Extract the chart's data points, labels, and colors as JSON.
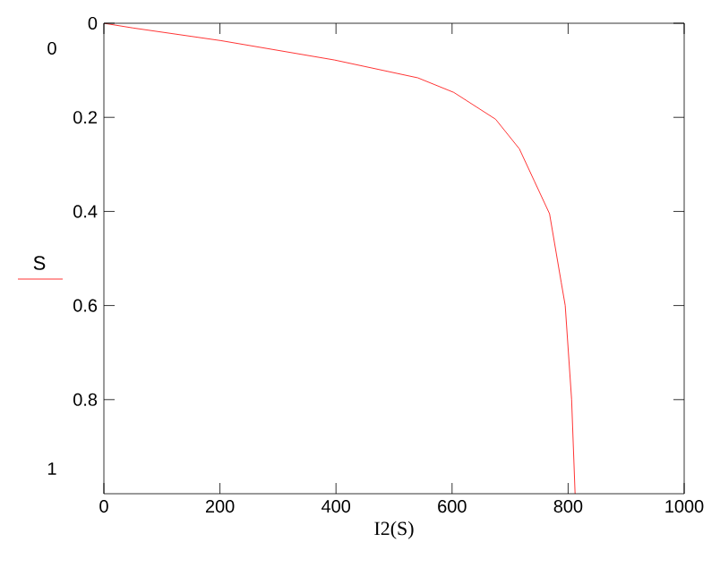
{
  "chart_data": {
    "type": "line",
    "xlabel": "I2(S)",
    "annotations": [
      "0",
      "1"
    ],
    "x": [
      0,
      50,
      202,
      397,
      541,
      603,
      675,
      716,
      742,
      768,
      788,
      795,
      806,
      812
    ],
    "series": [
      {
        "name": "S",
        "color": "#ff0000",
        "values": [
          0,
          0.01,
          0.037,
          0.078,
          0.116,
          0.147,
          0.204,
          0.267,
          0.336,
          0.405,
          0.55,
          0.6,
          0.8,
          1.0
        ]
      }
    ],
    "xlim": [
      0,
      1000
    ],
    "xticks": [
      0,
      200,
      400,
      600,
      800,
      1000
    ],
    "ylim": [
      1,
      0
    ],
    "yticks": [
      0,
      0.2,
      0.4,
      0.6,
      0.8
    ],
    "grid": false,
    "legend": "left",
    "marker": "none",
    "line_style": "solid"
  }
}
